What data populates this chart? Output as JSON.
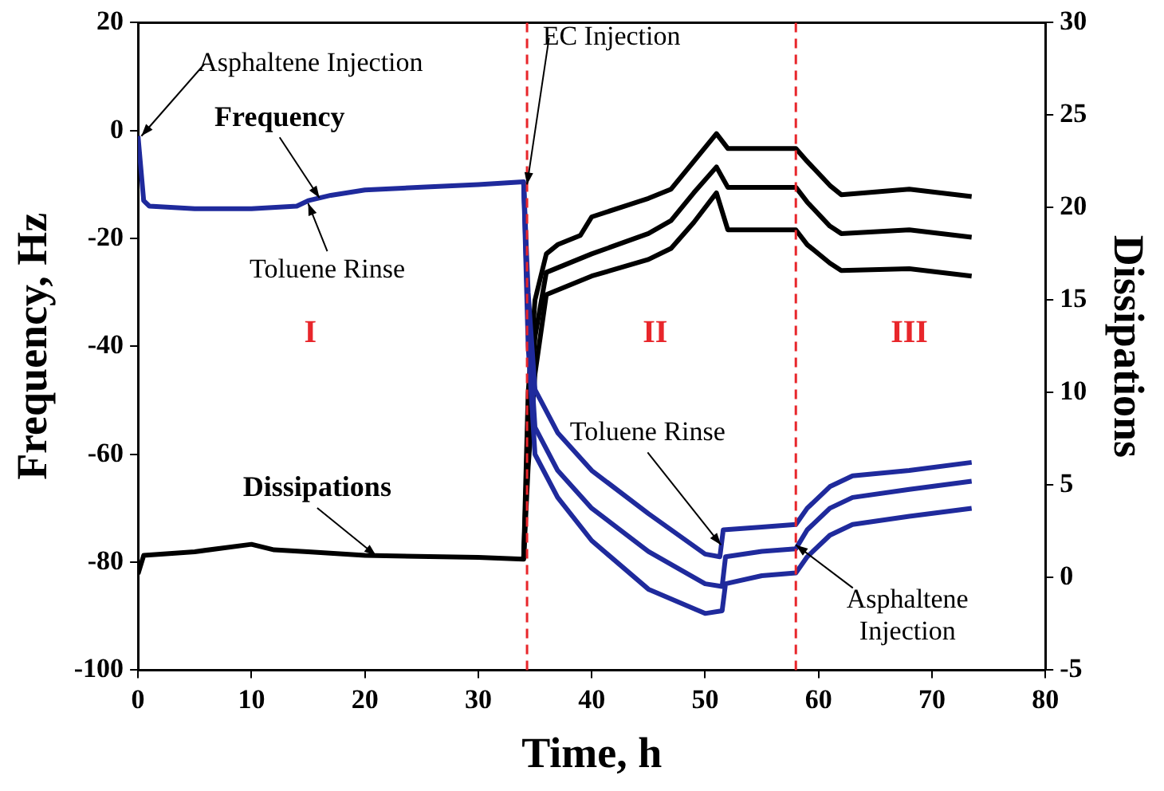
{
  "chart_data": {
    "type": "line",
    "xlabel": "Time, h",
    "ylabel": "Frequency, Hz",
    "y2label": "Dissipations",
    "xlim": [
      0,
      80
    ],
    "xticks": [
      0,
      10,
      20,
      30,
      40,
      50,
      60,
      70,
      80
    ],
    "ylim": [
      -100,
      20
    ],
    "yticks": [
      -100,
      -80,
      -60,
      -40,
      -20,
      0,
      20
    ],
    "y2lim": [
      -5,
      30
    ],
    "y2ticks": [
      -5,
      0,
      5,
      10,
      15,
      20,
      25,
      30
    ],
    "legend": false,
    "grid": false,
    "series": [
      {
        "color": "#1f2a9c",
        "x": [
          0,
          0.5,
          1,
          5,
          10,
          14,
          15,
          17,
          20,
          25,
          30,
          34,
          34.4,
          35,
          37,
          40,
          45,
          50,
          51.3,
          51.6,
          55,
          58,
          59,
          61,
          63,
          68,
          73.5
        ],
        "values": [
          -1,
          -13,
          -14,
          -14.5,
          -14.5,
          -14,
          -13,
          -12,
          -11,
          -10.5,
          -10,
          -9.5,
          -30,
          -48,
          -56,
          -63,
          -71,
          -78.5,
          -79,
          -74,
          -73.5,
          -73,
          -70,
          -66,
          -64,
          -63,
          -61.5
        ]
      },
      {
        "color": "#1f2a9c",
        "x": [
          34,
          34.4,
          35,
          37,
          40,
          45,
          50,
          51.5,
          51.8,
          55,
          58,
          59,
          61,
          63,
          68,
          73.5
        ],
        "values": [
          -9.5,
          -35,
          -55,
          -63,
          -70,
          -78,
          -84,
          -84.5,
          -79,
          -78,
          -77.5,
          -74,
          -70,
          -68,
          -66.5,
          -65
        ]
      },
      {
        "color": "#1f2a9c",
        "x": [
          34,
          34.4,
          35,
          37,
          40,
          45,
          50,
          51.5,
          51.8,
          55,
          58,
          59,
          61,
          63,
          68,
          73.5
        ],
        "values": [
          -9.5,
          -40,
          -60,
          -68,
          -76,
          -85,
          -89.5,
          -89,
          -84,
          -82.5,
          -82,
          -79,
          -75,
          -73,
          -71.5,
          -70
        ]
      },
      {
        "color": "#000000",
        "axis": "y2",
        "x": [
          0,
          0.5,
          5,
          10,
          12,
          15,
          20,
          30,
          34,
          34.4,
          35,
          36,
          37,
          39,
          40,
          45,
          47,
          49,
          51,
          52,
          58,
          59,
          61,
          62,
          68,
          73.5
        ],
        "values": [
          0.2,
          1.2,
          1.4,
          1.8,
          1.5,
          1.4,
          1.2,
          1.1,
          1.0,
          10,
          15,
          17.5,
          18,
          18.5,
          19.5,
          20.5,
          21,
          22.5,
          24,
          23.2,
          23.2,
          22.5,
          21.2,
          20.7,
          21,
          20.6
        ]
      },
      {
        "color": "#000000",
        "axis": "y2",
        "x": [
          34,
          34.4,
          35,
          36,
          40,
          45,
          47,
          49,
          51,
          52,
          58,
          59,
          61,
          62,
          68,
          73.5
        ],
        "values": [
          1.0,
          8,
          13,
          16.5,
          17.5,
          18.6,
          19.3,
          20.8,
          22.2,
          21.1,
          21.1,
          20.3,
          19,
          18.6,
          18.8,
          18.4
        ]
      },
      {
        "color": "#000000",
        "axis": "y2",
        "x": [
          34,
          34.4,
          35,
          36,
          40,
          45,
          47,
          49,
          51,
          52,
          58,
          59,
          61,
          62,
          68,
          73.5
        ],
        "values": [
          1.0,
          6,
          11,
          15.3,
          16.3,
          17.2,
          17.8,
          19.2,
          20.8,
          18.8,
          18.8,
          18,
          17,
          16.6,
          16.7,
          16.3
        ]
      }
    ],
    "ref_lines": [
      {
        "axis": "x",
        "value": 34.3,
        "color": "#e8262b",
        "line_style": "dashed"
      },
      {
        "axis": "x",
        "value": 58,
        "color": "#e8262b",
        "line_style": "dashed"
      }
    ],
    "annotations": [
      {
        "text": "Asphaltene Injection",
        "x": 0.3,
        "y": -1
      },
      {
        "text": "Frequency",
        "x": 16,
        "y": -12.5
      },
      {
        "text": "Toluene Rinse",
        "x": 15,
        "y": -13.5
      },
      {
        "text": "EC Injection",
        "x": 34.3,
        "y": -10
      },
      "I",
      "II",
      "III",
      {
        "text": "Dissipations",
        "x": 21,
        "y": -78.8
      },
      {
        "text": "Toluene Rinse",
        "x": 51.4,
        "y": -76.8
      },
      {
        "text": "Asphaltene Injection",
        "x": 58,
        "y": -76.8
      }
    ]
  }
}
